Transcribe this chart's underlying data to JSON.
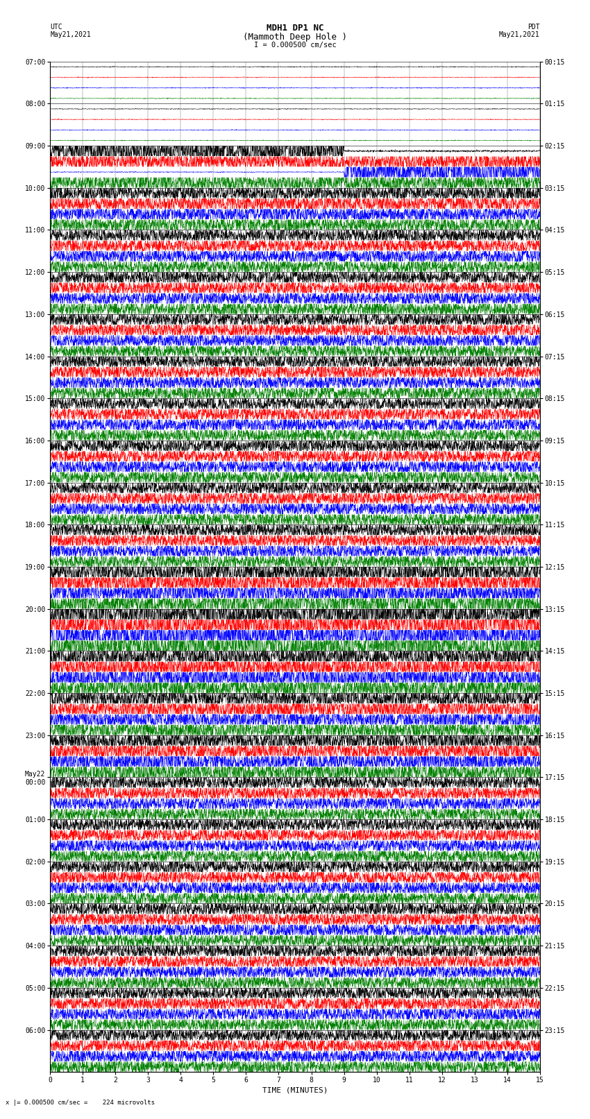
{
  "title_line1": "MDH1 DP1 NC",
  "title_line2": "(Mammoth Deep Hole )",
  "title_line3": "I = 0.000500 cm/sec",
  "label_left_top": "UTC",
  "label_left_date": "May21,2021",
  "label_right_top": "PDT",
  "label_right_date": "May21,2021",
  "xlabel": "TIME (MINUTES)",
  "footer": "x |= 0.000500 cm/sec =    224 microvolts",
  "utc_labels": [
    "07:00",
    "08:00",
    "09:00",
    "10:00",
    "11:00",
    "12:00",
    "13:00",
    "14:00",
    "15:00",
    "16:00",
    "17:00",
    "18:00",
    "19:00",
    "20:00",
    "21:00",
    "22:00",
    "23:00",
    "May22\n00:00",
    "01:00",
    "02:00",
    "03:00",
    "04:00",
    "05:00",
    "06:00"
  ],
  "pdt_labels": [
    "00:15",
    "01:15",
    "02:15",
    "03:15",
    "04:15",
    "05:15",
    "06:15",
    "07:15",
    "08:15",
    "09:15",
    "10:15",
    "11:15",
    "12:15",
    "13:15",
    "14:15",
    "15:15",
    "16:15",
    "17:15",
    "18:15",
    "19:15",
    "20:15",
    "21:15",
    "22:15",
    "23:15"
  ],
  "colors": [
    "black",
    "red",
    "blue",
    "green"
  ],
  "bg_color": "white",
  "minutes": 15,
  "xlim": [
    0,
    15
  ],
  "xticks": [
    0,
    1,
    2,
    3,
    4,
    5,
    6,
    7,
    8,
    9,
    10,
    11,
    12,
    13,
    14,
    15
  ],
  "title_fontsize": 9,
  "tick_fontsize": 7,
  "trace_amplitude": 0.42,
  "noise_level": 0.35,
  "samples_per_minute": 200
}
